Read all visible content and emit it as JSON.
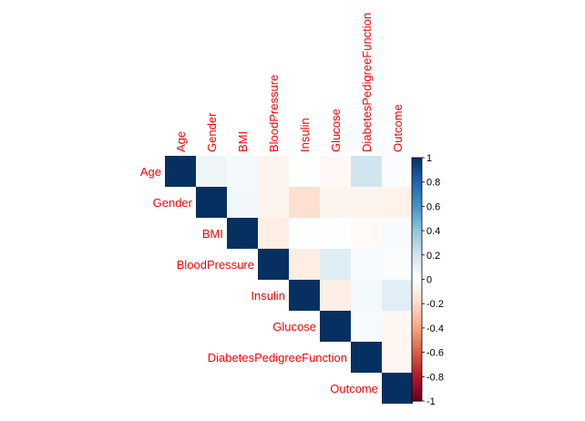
{
  "chart_data": {
    "type": "heatmap",
    "subtype": "upper-triangle-correlation",
    "variables": [
      "Age",
      "Gender",
      "BMI",
      "BloodPressure",
      "Insulin",
      "Glucose",
      "DiabetesPedigreeFunction",
      "Outcome"
    ],
    "matrix": [
      [
        1.0,
        0.08,
        0.05,
        -0.06,
        0.01,
        -0.04,
        0.2,
        0.02
      ],
      [
        null,
        1.0,
        0.06,
        -0.06,
        -0.17,
        -0.06,
        -0.06,
        -0.07
      ],
      [
        null,
        null,
        1.0,
        -0.09,
        0.01,
        0.01,
        -0.03,
        0.03
      ],
      [
        null,
        null,
        null,
        1.0,
        -0.1,
        0.14,
        0.03,
        0.02
      ],
      [
        null,
        null,
        null,
        null,
        1.0,
        -0.09,
        0.05,
        0.13
      ],
      [
        null,
        null,
        null,
        null,
        null,
        1.0,
        0.03,
        -0.05
      ],
      [
        null,
        null,
        null,
        null,
        null,
        null,
        1.0,
        -0.05
      ],
      [
        null,
        null,
        null,
        null,
        null,
        null,
        null,
        1.0
      ]
    ],
    "colorbar": {
      "range": [
        -1,
        1
      ],
      "ticks": [
        "1",
        "0.8",
        "0.6",
        "0.4",
        "0.2",
        "0",
        "-0.2",
        "-0.4",
        "-0.6",
        "-0.8",
        "-1"
      ],
      "tick_values": [
        1,
        0.8,
        0.6,
        0.4,
        0.2,
        0,
        -0.2,
        -0.4,
        -0.6,
        -0.8,
        -1
      ],
      "colors": {
        "negative": "#67001F",
        "neutral": "#FFFFFF",
        "positive": "#053061"
      }
    },
    "label_color": "#FF0000",
    "title": "",
    "legend_position": "right"
  }
}
